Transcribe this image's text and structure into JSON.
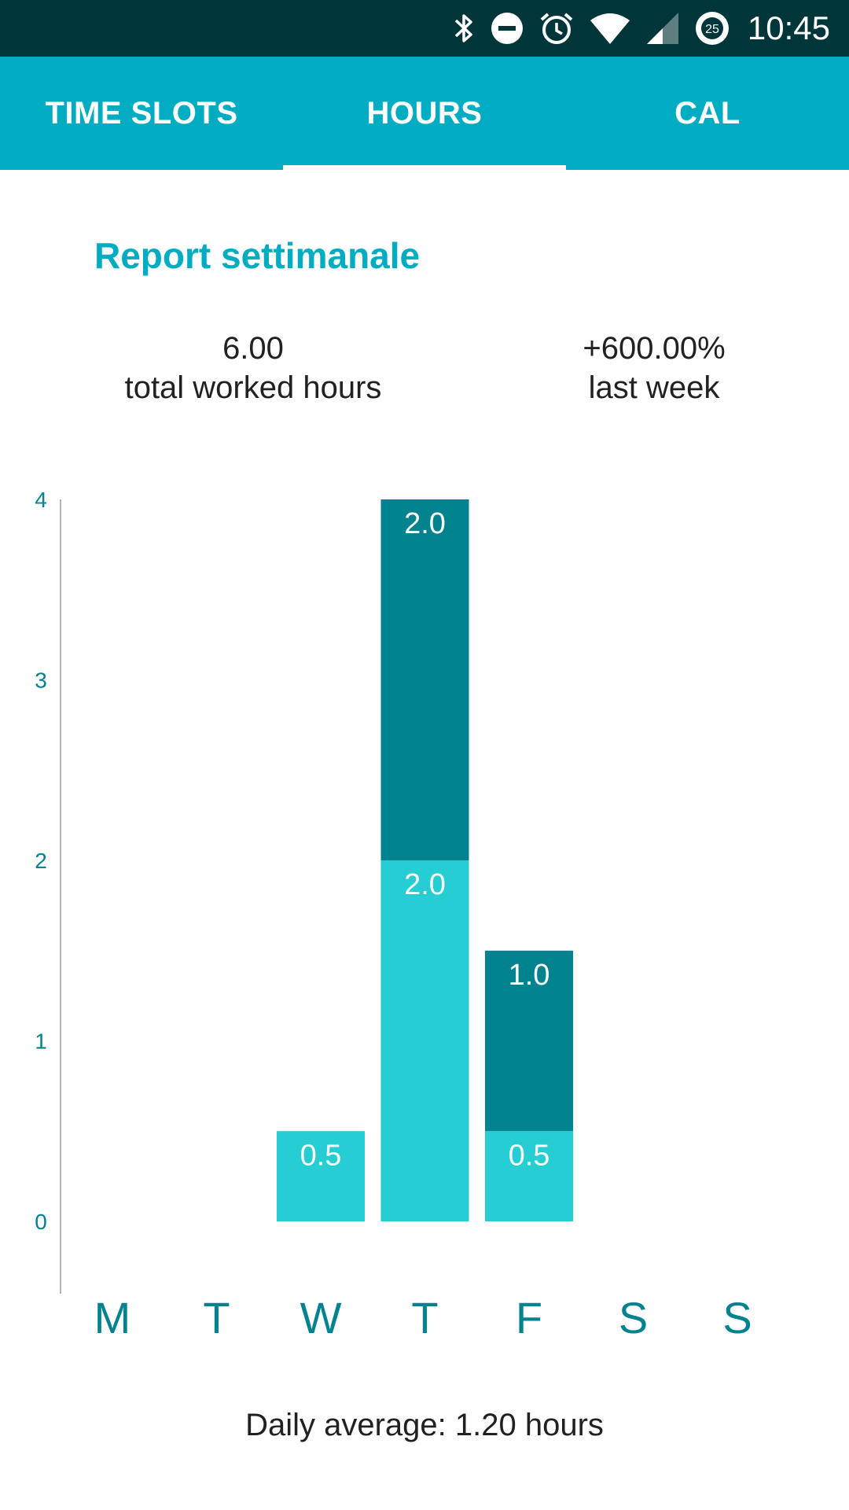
{
  "status_bar": {
    "time": "10:45",
    "icons": [
      "bluetooth-icon",
      "do-not-disturb-icon",
      "alarm-icon",
      "wifi-icon",
      "cell-signal-icon",
      "data-saver-icon"
    ],
    "badge_value": "25",
    "background_color": "#00363a"
  },
  "tabs": [
    {
      "label": "TIME SLOTS",
      "active": false
    },
    {
      "label": "HOURS",
      "active": true
    },
    {
      "label": "CAL",
      "active": false
    }
  ],
  "report": {
    "title": "Report settimanale",
    "total_value": "6.00",
    "total_label": "total worked hours",
    "change_value": "+600.00%",
    "change_label": "last week",
    "daily_average": "Daily average: 1.20 hours"
  },
  "colors": {
    "accent": "#00acc1",
    "bar_light": "#26cdd3",
    "bar_dark": "#00838f",
    "axis_text": "#00838f"
  },
  "chart_data": {
    "type": "bar",
    "stacked": true,
    "categories": [
      "M",
      "T",
      "W",
      "T",
      "F",
      "S",
      "S"
    ],
    "series": [
      {
        "values": [
          0,
          0,
          0.5,
          2.0,
          0.5,
          0,
          0
        ],
        "color": "#26cdd3"
      },
      {
        "values": [
          0,
          0,
          0,
          2.0,
          1.0,
          0,
          0
        ],
        "color": "#00838f"
      }
    ],
    "yticks": [
      0,
      1,
      2,
      3,
      4
    ],
    "ylim": [
      0,
      4
    ],
    "grid": false,
    "data_labels": true
  }
}
